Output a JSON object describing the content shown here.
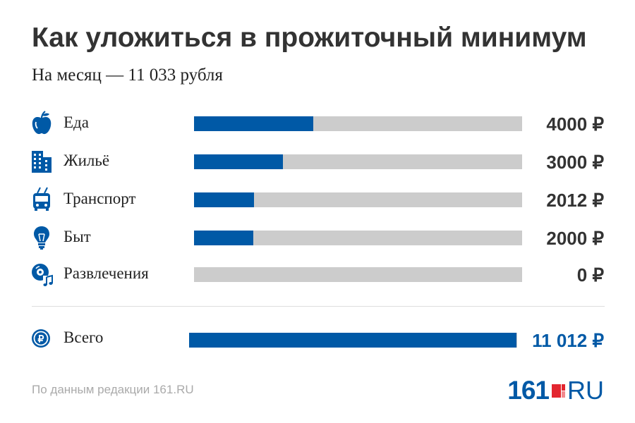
{
  "title": "Как уложиться в прожиточный минимум",
  "subtitle": "На месяц —  11 033 рубля",
  "colors": {
    "bar_fill": "#0059a6",
    "bar_track": "#cccccc",
    "total_value": "#0059a6",
    "logo_red": "#e3262f"
  },
  "chart_data": {
    "type": "bar",
    "orientation": "horizontal",
    "scale_max": 11033,
    "categories": [
      "Еда",
      "Жильё",
      "Транспорт",
      "Быт",
      "Развлечения"
    ],
    "icons": [
      "apple-icon",
      "building-icon",
      "trolleybus-icon",
      "lightbulb-icon",
      "music-disc-icon"
    ],
    "values": [
      4000,
      3000,
      2012,
      2000,
      0
    ],
    "value_labels": [
      "4000 ₽",
      "3000 ₽",
      "2012  ₽",
      "2000 ₽",
      "0 ₽"
    ],
    "total": {
      "label": "Всего",
      "icon": "ruble-coin-icon",
      "value": 11012,
      "value_label": "11 012 ₽"
    }
  },
  "source": "По данным редакции 161.RU",
  "logo": {
    "number": "161",
    "domain": "RU"
  }
}
